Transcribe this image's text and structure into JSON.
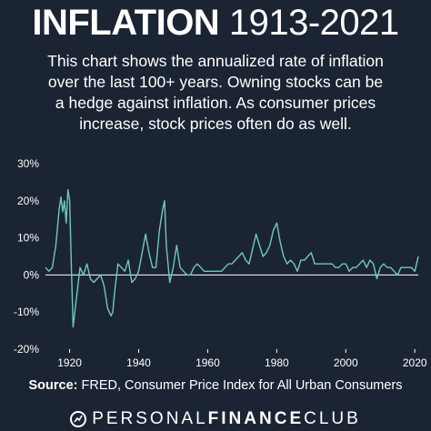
{
  "header": {
    "title_bold": "INFLATION",
    "title_light": "1913-2021",
    "description_lines": [
      "This chart shows the annualized rate of inflation",
      "over the last 100+ years. Owning stocks can be",
      "a hedge against inflation. As consumer prices",
      "increase, stock prices often do as well."
    ]
  },
  "footer": {
    "source_label": "Source:",
    "source_text": "FRED, Consumer Price Index for All Urban Consumers",
    "brand_light_1": "PERSONAL",
    "brand_bold": "FINANCE",
    "brand_light_2": "CLUB"
  },
  "colors": {
    "background": "#1b2433",
    "line": "#6fc8c0",
    "text": "#ffffff",
    "zero_line": "#ffffff"
  },
  "chart_data": {
    "type": "line",
    "xlim": [
      1913,
      2021
    ],
    "ylim": [
      -20,
      30
    ],
    "x_ticks": [
      1920,
      1940,
      1960,
      1980,
      2000,
      2020
    ],
    "x_tick_labels": [
      "1920",
      "1940",
      "1960",
      "1980",
      "2000",
      "2020"
    ],
    "y_ticks": [
      30,
      20,
      10,
      0,
      -10,
      -20
    ],
    "y_tick_labels": [
      "30%",
      "20%",
      "10%",
      "0%",
      "-10%",
      "-20%"
    ],
    "grid": false,
    "series": [
      {
        "x": [
          1913,
          1914,
          1915,
          1916,
          1917,
          1917.5,
          1918,
          1918.5,
          1919,
          1919.5,
          1920,
          1920.5,
          1921,
          1921.5,
          1922,
          1923,
          1924,
          1925,
          1926,
          1927,
          1928,
          1929,
          1930,
          1930.5,
          1931,
          1932,
          1932.5,
          1933,
          1934,
          1935,
          1936,
          1937,
          1938,
          1939,
          1940,
          1941,
          1942,
          1943,
          1944,
          1945,
          1946,
          1947,
          1947.5,
          1948,
          1949,
          1950,
          1951,
          1952,
          1953,
          1954,
          1955,
          1956,
          1957,
          1958,
          1959,
          1960,
          1961,
          1962,
          1963,
          1964,
          1965,
          1966,
          1967,
          1968,
          1969,
          1970,
          1971,
          1972,
          1973,
          1974,
          1975,
          1976,
          1977,
          1978,
          1979,
          1980,
          1981,
          1982,
          1983,
          1984,
          1985,
          1986,
          1987,
          1988,
          1989,
          1990,
          1991,
          1992,
          1993,
          1994,
          1995,
          1996,
          1997,
          1998,
          1999,
          2000,
          2001,
          2002,
          2003,
          2004,
          2005,
          2006,
          2007,
          2008,
          2009,
          2010,
          2011,
          2012,
          2013,
          2014,
          2015,
          2016,
          2017,
          2018,
          2019,
          2020,
          2021
        ],
        "values": [
          2,
          1,
          2,
          8,
          18,
          21,
          17,
          20,
          14,
          23,
          20,
          2,
          -14,
          -10,
          -6,
          2,
          0,
          3,
          -1,
          -2,
          -1,
          0,
          -3,
          -6,
          -9,
          -11,
          -10,
          -5,
          3,
          2,
          1,
          4,
          -2,
          -1,
          1,
          6,
          11,
          6,
          2,
          2,
          12,
          18,
          20,
          8,
          -2,
          2,
          8,
          2,
          1,
          0,
          0,
          2,
          3,
          2,
          1,
          1,
          1,
          1,
          1,
          1,
          2,
          3,
          3,
          4,
          5,
          6,
          4,
          3,
          7,
          11,
          8,
          5,
          6,
          8,
          12,
          14,
          9,
          5,
          3,
          4,
          3,
          1,
          4,
          4,
          5,
          6,
          3,
          3,
          3,
          3,
          3,
          3,
          2,
          2,
          3,
          3,
          1,
          2,
          2,
          3,
          4,
          2,
          4,
          3,
          -1,
          2,
          3,
          2,
          2,
          1,
          0,
          2,
          2,
          2,
          2,
          1,
          5
        ]
      }
    ]
  }
}
